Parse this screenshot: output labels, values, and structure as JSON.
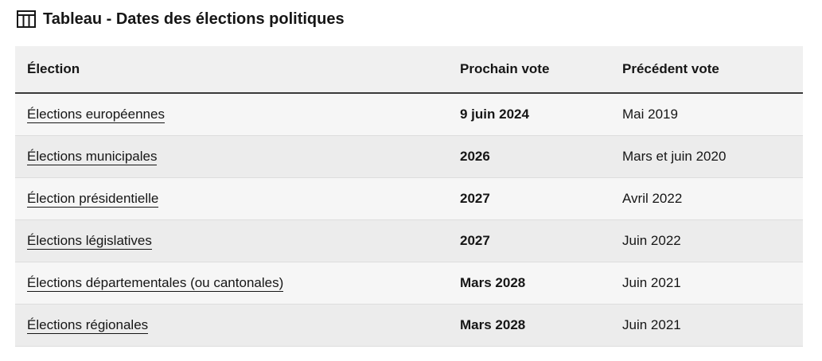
{
  "caption": {
    "icon": "table-icon",
    "title": "Tableau - Dates des élections politiques"
  },
  "table": {
    "headers": [
      "Élection",
      "Prochain vote",
      "Précédent vote"
    ],
    "rows": [
      {
        "election": "Élections européennes",
        "next": "9 juin 2024",
        "previous": "Mai 2019"
      },
      {
        "election": "Élections municipales",
        "next": "2026",
        "previous": "Mars et juin 2020"
      },
      {
        "election": "Élection présidentielle",
        "next": "2027",
        "previous": "Avril 2022"
      },
      {
        "election": "Élections législatives",
        "next": "2027",
        "previous": "Juin 2022"
      },
      {
        "election": "Élections départementales (ou cantonales)",
        "next": "Mars 2028",
        "previous": "Juin 2021"
      },
      {
        "election": "Élections régionales",
        "next": "Mars 2028",
        "previous": "Juin 2021"
      }
    ]
  }
}
